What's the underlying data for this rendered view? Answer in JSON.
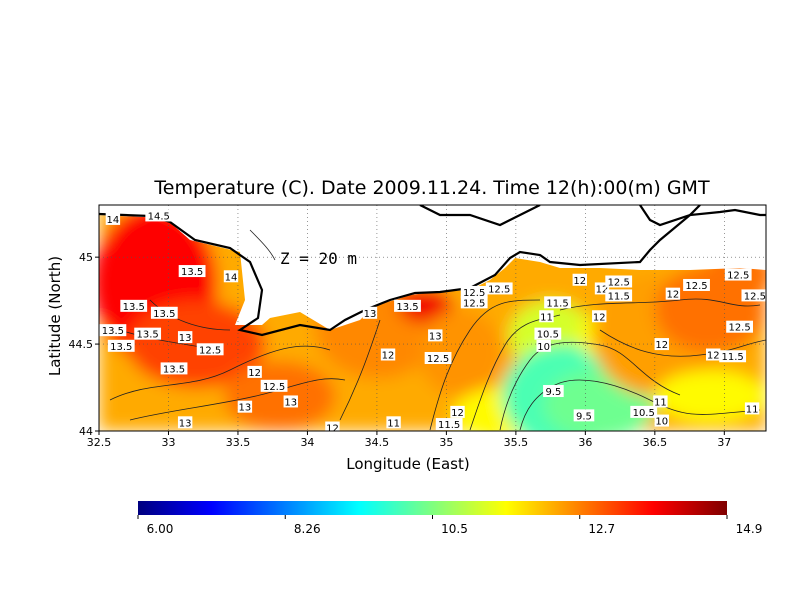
{
  "chart_data": {
    "type": "heatmap",
    "title": "Temperature (C). Date 2009.11.24. Time 12(h):00(m) GMT",
    "xlabel": "Longitude (East)",
    "ylabel": "Latitude (North)",
    "annotation": "Z = 20 m",
    "xlim": [
      32.5,
      37.3
    ],
    "ylim": [
      44.0,
      45.3
    ],
    "x_ticks": [
      "32.5",
      "33",
      "33.5",
      "34",
      "34.5",
      "35",
      "35.5",
      "36",
      "36.5",
      "37"
    ],
    "y_ticks": [
      "44",
      "44.5",
      "45"
    ],
    "grid": true,
    "colorbar": {
      "min": 6.0,
      "max": 14.9,
      "tick_labels": [
        "6.00",
        "8.26",
        "10.5",
        "12.7",
        "14.9"
      ],
      "colors": [
        "#00007f",
        "#0000ff",
        "#007fff",
        "#00ffff",
        "#7fff7f",
        "#ffff00",
        "#ff7f00",
        "#ff0000",
        "#7f0000"
      ]
    },
    "contour_labels": [
      {
        "x": 32.6,
        "y": 45.22,
        "text": "14"
      },
      {
        "x": 32.93,
        "y": 45.24,
        "text": "14.5"
      },
      {
        "x": 33.17,
        "y": 44.92,
        "text": "13.5"
      },
      {
        "x": 33.45,
        "y": 44.89,
        "text": "14"
      },
      {
        "x": 32.75,
        "y": 44.72,
        "text": "13.5"
      },
      {
        "x": 32.97,
        "y": 44.68,
        "text": "13.5"
      },
      {
        "x": 32.6,
        "y": 44.58,
        "text": "13.5"
      },
      {
        "x": 32.85,
        "y": 44.56,
        "text": "13.5"
      },
      {
        "x": 32.66,
        "y": 44.49,
        "text": "13.5"
      },
      {
        "x": 33.12,
        "y": 44.54,
        "text": "13"
      },
      {
        "x": 33.3,
        "y": 44.47,
        "text": "12.5"
      },
      {
        "x": 33.04,
        "y": 44.36,
        "text": "13.5"
      },
      {
        "x": 33.62,
        "y": 44.34,
        "text": "12"
      },
      {
        "x": 33.76,
        "y": 44.26,
        "text": "12.5"
      },
      {
        "x": 33.88,
        "y": 44.17,
        "text": "13"
      },
      {
        "x": 33.55,
        "y": 44.14,
        "text": "13"
      },
      {
        "x": 33.12,
        "y": 44.05,
        "text": "13"
      },
      {
        "x": 34.18,
        "y": 44.02,
        "text": "12"
      },
      {
        "x": 34.58,
        "y": 44.44,
        "text": "12"
      },
      {
        "x": 34.45,
        "y": 44.68,
        "text": "13"
      },
      {
        "x": 34.72,
        "y": 44.72,
        "text": "13.5"
      },
      {
        "x": 34.92,
        "y": 44.55,
        "text": "13"
      },
      {
        "x": 34.94,
        "y": 44.42,
        "text": "12.5"
      },
      {
        "x": 35.2,
        "y": 44.8,
        "text": "12.5"
      },
      {
        "x": 35.2,
        "y": 44.74,
        "text": "12.5"
      },
      {
        "x": 35.38,
        "y": 44.82,
        "text": "12.5"
      },
      {
        "x": 35.08,
        "y": 44.11,
        "text": "12"
      },
      {
        "x": 35.02,
        "y": 44.04,
        "text": "11.5"
      },
      {
        "x": 34.62,
        "y": 44.05,
        "text": "11"
      },
      {
        "x": 35.72,
        "y": 44.66,
        "text": "11"
      },
      {
        "x": 35.73,
        "y": 44.56,
        "text": "10.5"
      },
      {
        "x": 35.7,
        "y": 44.49,
        "text": "10"
      },
      {
        "x": 35.77,
        "y": 44.23,
        "text": "9.5"
      },
      {
        "x": 35.99,
        "y": 44.09,
        "text": "9.5"
      },
      {
        "x": 35.8,
        "y": 44.74,
        "text": "11.5"
      },
      {
        "x": 35.96,
        "y": 44.87,
        "text": "12"
      },
      {
        "x": 36.12,
        "y": 44.82,
        "text": "12"
      },
      {
        "x": 36.24,
        "y": 44.86,
        "text": "12.5"
      },
      {
        "x": 36.24,
        "y": 44.78,
        "text": "11.5"
      },
      {
        "x": 36.1,
        "y": 44.66,
        "text": "12"
      },
      {
        "x": 36.63,
        "y": 44.79,
        "text": "12"
      },
      {
        "x": 36.8,
        "y": 44.84,
        "text": "12.5"
      },
      {
        "x": 37.1,
        "y": 44.9,
        "text": "12.5"
      },
      {
        "x": 37.22,
        "y": 44.78,
        "text": "12.5"
      },
      {
        "x": 37.11,
        "y": 44.6,
        "text": "12.5"
      },
      {
        "x": 36.55,
        "y": 44.5,
        "text": "12"
      },
      {
        "x": 36.92,
        "y": 44.44,
        "text": "12"
      },
      {
        "x": 37.06,
        "y": 44.43,
        "text": "11.5"
      },
      {
        "x": 36.54,
        "y": 44.17,
        "text": "11"
      },
      {
        "x": 36.42,
        "y": 44.11,
        "text": "10.5"
      },
      {
        "x": 36.55,
        "y": 44.06,
        "text": "10"
      },
      {
        "x": 37.2,
        "y": 44.13,
        "text": "11"
      }
    ]
  }
}
